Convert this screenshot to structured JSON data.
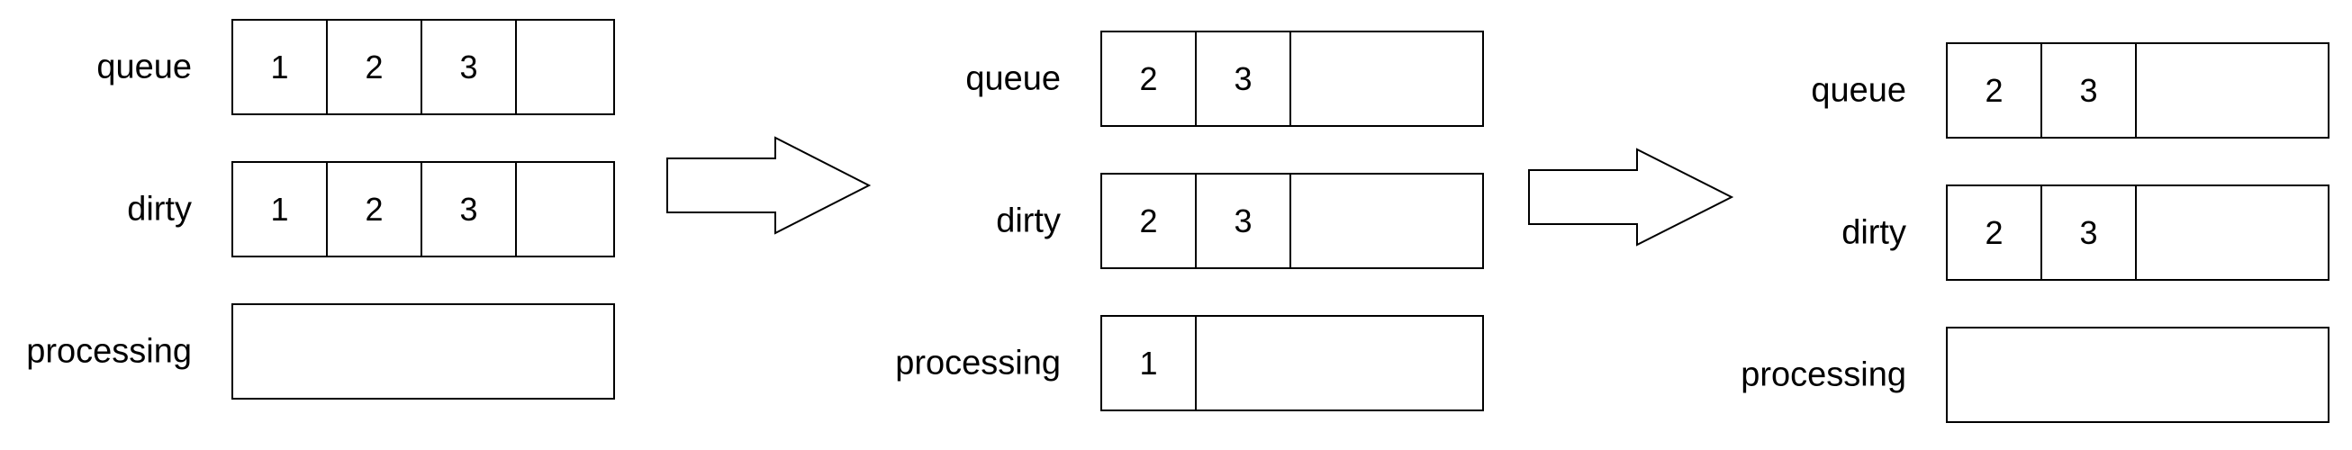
{
  "stages": [
    {
      "rows": [
        {
          "label": "queue",
          "items": [
            "1",
            "2",
            "3"
          ]
        },
        {
          "label": "dirty",
          "items": [
            "1",
            "2",
            "3"
          ]
        },
        {
          "label": "processing",
          "items": []
        }
      ]
    },
    {
      "rows": [
        {
          "label": "queue",
          "items": [
            "2",
            "3"
          ]
        },
        {
          "label": "dirty",
          "items": [
            "2",
            "3"
          ]
        },
        {
          "label": "processing",
          "items": [
            "1"
          ]
        }
      ]
    },
    {
      "rows": [
        {
          "label": "queue",
          "items": [
            "2",
            "3"
          ]
        },
        {
          "label": "dirty",
          "items": [
            "2",
            "3"
          ]
        },
        {
          "label": "processing",
          "items": []
        }
      ]
    }
  ],
  "transitions": 2,
  "colors": {
    "stroke": "#000000",
    "background": "#ffffff",
    "text": "#000000"
  }
}
